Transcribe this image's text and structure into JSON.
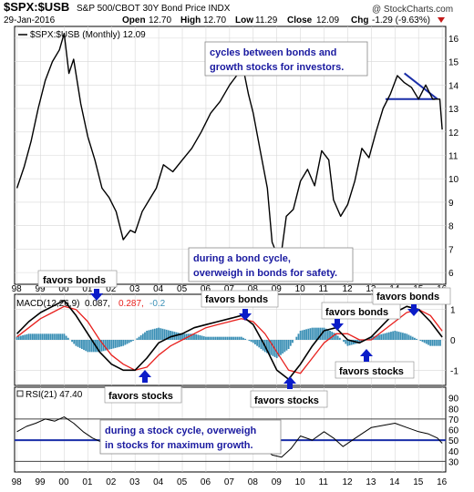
{
  "header": {
    "symbol": "$SPX:$USB",
    "description": "S&P 500/CBOT 30Y Bond Price  INDX",
    "date": "29-Jan-2016",
    "open_label": "Open",
    "open": "12.70",
    "high_label": "High",
    "high": "12.70",
    "low_label": "Low",
    "low": "11.29",
    "close_label": "Close",
    "close": "12.09",
    "chg_label": "Chg",
    "chg": "-1.29 (-9.63%)",
    "watermark": "@ StockCharts.com"
  },
  "colors": {
    "price": "#000000",
    "macd": "#000000",
    "signal": "#e8201d",
    "hist": "#3a8fb5",
    "annotation_text": "#1a1aa0",
    "arrow": "#0b1cc8",
    "trendline": "#1a2ea8",
    "rsi_line": "#000000"
  },
  "chart_data": [
    {
      "type": "line",
      "panel": "price",
      "legend": "$SPX:$USB (Monthly) 12.09",
      "ylim": [
        5.5,
        16.5
      ],
      "y_ticks": [
        "6",
        "7",
        "8",
        "9",
        "10",
        "11",
        "12",
        "13",
        "14",
        "15",
        "16"
      ],
      "x": [
        1998.0,
        1998.3,
        1998.6,
        1998.9,
        1999.2,
        1999.5,
        1999.8,
        2000.0,
        2000.2,
        2000.4,
        2000.7,
        2001.0,
        2001.3,
        2001.6,
        2001.9,
        2002.2,
        2002.5,
        2002.8,
        2003.0,
        2003.3,
        2003.6,
        2003.9,
        2004.2,
        2004.6,
        2005.0,
        2005.4,
        2005.8,
        2006.2,
        2006.6,
        2007.0,
        2007.3,
        2007.6,
        2007.8,
        2008.0,
        2008.3,
        2008.6,
        2008.8,
        2009.0,
        2009.2,
        2009.4,
        2009.7,
        2010.0,
        2010.3,
        2010.6,
        2010.9,
        2011.2,
        2011.4,
        2011.7,
        2012.0,
        2012.3,
        2012.6,
        2012.9,
        2013.2,
        2013.5,
        2013.8,
        2014.1,
        2014.4,
        2014.7,
        2015.0,
        2015.3,
        2015.6,
        2015.9,
        2016.0
      ],
      "y": [
        9.6,
        10.5,
        11.6,
        13.0,
        14.2,
        15.0,
        15.5,
        16.2,
        14.5,
        15.1,
        13.2,
        11.8,
        10.8,
        9.6,
        9.2,
        8.6,
        7.4,
        7.8,
        7.7,
        8.6,
        9.1,
        9.6,
        10.6,
        10.3,
        10.8,
        11.3,
        12.0,
        12.8,
        13.3,
        14.0,
        14.4,
        14.6,
        13.6,
        12.8,
        11.2,
        9.6,
        7.3,
        6.8,
        6.9,
        8.4,
        8.7,
        9.9,
        10.4,
        9.7,
        11.2,
        10.8,
        9.1,
        8.4,
        8.9,
        9.9,
        11.3,
        10.9,
        12.0,
        13.0,
        13.6,
        14.4,
        14.1,
        13.9,
        13.4,
        14.0,
        13.4,
        13.4,
        12.1
      ],
      "trendline_horizontal": {
        "y": 13.4,
        "x_range": [
          2013.6,
          2015.7
        ]
      },
      "trendline_descending": {
        "x": [
          2014.4,
          2015.8
        ],
        "y": [
          14.5,
          13.4
        ]
      }
    },
    {
      "type": "line",
      "panel": "macd",
      "legend_label": "MACD(12,26,9)",
      "legend_values": [
        "0.087,",
        "0.287,",
        "-0.2"
      ],
      "ylim": [
        -1.5,
        1.5
      ],
      "y_ticks": [
        "-1",
        "0",
        "1"
      ],
      "series": [
        {
          "name": "MACD",
          "x": [
            1998.0,
            1998.5,
            1999.0,
            1999.5,
            2000.0,
            2000.5,
            2001.0,
            2001.5,
            2002.0,
            2002.5,
            2003.0,
            2003.5,
            2004.0,
            2004.5,
            2005.0,
            2005.5,
            2006.0,
            2006.5,
            2007.0,
            2007.5,
            2008.0,
            2008.5,
            2009.0,
            2009.5,
            2010.0,
            2010.5,
            2011.0,
            2011.5,
            2012.0,
            2012.5,
            2013.0,
            2013.5,
            2014.0,
            2014.5,
            2015.0,
            2015.5,
            2016.0
          ],
          "y": [
            0.2,
            0.6,
            0.9,
            1.1,
            1.3,
            0.8,
            0.2,
            -0.4,
            -0.8,
            -1.0,
            -1.0,
            -0.6,
            -0.1,
            0.1,
            0.2,
            0.4,
            0.5,
            0.6,
            0.7,
            0.8,
            0.5,
            -0.2,
            -1.0,
            -1.3,
            -0.8,
            -0.2,
            0.3,
            0.4,
            0.0,
            -0.1,
            0.1,
            0.5,
            0.9,
            1.1,
            1.0,
            0.6,
            0.09
          ]
        },
        {
          "name": "Signal",
          "x": [
            1998.0,
            1998.5,
            1999.0,
            1999.5,
            2000.0,
            2000.5,
            2001.0,
            2001.5,
            2002.0,
            2002.5,
            2003.0,
            2003.5,
            2004.0,
            2004.5,
            2005.0,
            2005.5,
            2006.0,
            2006.5,
            2007.0,
            2007.5,
            2008.0,
            2008.5,
            2009.0,
            2009.5,
            2010.0,
            2010.5,
            2011.0,
            2011.5,
            2012.0,
            2012.5,
            2013.0,
            2013.5,
            2014.0,
            2014.5,
            2015.0,
            2015.5,
            2016.0
          ],
          "y": [
            0.1,
            0.4,
            0.7,
            0.9,
            1.1,
            1.0,
            0.6,
            0.0,
            -0.5,
            -0.8,
            -1.0,
            -0.9,
            -0.5,
            -0.2,
            0.0,
            0.2,
            0.4,
            0.5,
            0.6,
            0.7,
            0.6,
            0.2,
            -0.4,
            -1.0,
            -1.1,
            -0.6,
            -0.1,
            0.2,
            0.2,
            0.0,
            0.0,
            0.3,
            0.6,
            0.9,
            1.0,
            0.8,
            0.29
          ]
        }
      ],
      "histogram": {
        "x": [
          1998.0,
          1998.5,
          1999.0,
          1999.5,
          2000.0,
          2000.5,
          2001.0,
          2001.5,
          2002.0,
          2002.5,
          2003.0,
          2003.5,
          2004.0,
          2004.5,
          2005.0,
          2005.5,
          2006.0,
          2006.5,
          2007.0,
          2007.5,
          2008.0,
          2008.5,
          2009.0,
          2009.5,
          2010.0,
          2010.5,
          2011.0,
          2011.5,
          2012.0,
          2012.5,
          2013.0,
          2013.5,
          2014.0,
          2014.5,
          2015.0,
          2015.5,
          2016.0
        ],
        "y": [
          0.1,
          0.2,
          0.2,
          0.2,
          0.2,
          -0.2,
          -0.4,
          -0.4,
          -0.3,
          -0.2,
          0.0,
          0.3,
          0.4,
          0.3,
          0.2,
          0.2,
          0.1,
          0.1,
          0.1,
          0.1,
          -0.1,
          -0.4,
          -0.6,
          -0.3,
          0.3,
          0.4,
          0.4,
          0.2,
          -0.2,
          -0.1,
          0.1,
          0.2,
          0.3,
          0.2,
          0.0,
          -0.2,
          -0.2
        ]
      }
    },
    {
      "type": "line",
      "panel": "rsi",
      "legend": "RSI(21) 47.40",
      "ylim": [
        20,
        100
      ],
      "y_ticks": [
        "30",
        "40",
        "50",
        "60",
        "70",
        "80",
        "90"
      ],
      "reference_lines": [
        30,
        50,
        70
      ],
      "x": [
        1998.0,
        1998.4,
        1998.8,
        1999.2,
        1999.6,
        2000.0,
        2000.4,
        2000.8,
        2001.2,
        2001.6,
        2002.0,
        2002.4,
        2002.8,
        2003.2,
        2003.6,
        2004.0,
        2004.5,
        2005.0,
        2005.5,
        2006.0,
        2006.5,
        2007.0,
        2007.5,
        2008.0,
        2008.4,
        2008.8,
        2009.2,
        2009.6,
        2010.0,
        2010.5,
        2011.0,
        2011.4,
        2011.8,
        2012.2,
        2012.6,
        2013.0,
        2013.5,
        2014.0,
        2014.5,
        2015.0,
        2015.4,
        2015.8,
        2016.0
      ],
      "y": [
        58,
        63,
        66,
        70,
        68,
        72,
        66,
        58,
        52,
        48,
        44,
        40,
        38,
        42,
        50,
        56,
        53,
        55,
        57,
        58,
        56,
        60,
        58,
        52,
        44,
        36,
        34,
        42,
        54,
        50,
        58,
        52,
        44,
        50,
        56,
        62,
        64,
        66,
        62,
        58,
        56,
        52,
        47
      ],
      "x_ticks": [
        "98",
        "99",
        "00",
        "01",
        "02",
        "03",
        "04",
        "05",
        "06",
        "07",
        "08",
        "09",
        "10",
        "11",
        "12",
        "13",
        "14",
        "15",
        "16"
      ],
      "x_tick_years": [
        1998,
        1999,
        2000,
        2001,
        2002,
        2003,
        2004,
        2005,
        2006,
        2007,
        2008,
        2009,
        2010,
        2011,
        2012,
        2013,
        2014,
        2015,
        2016
      ]
    }
  ],
  "annotations": {
    "cycles": [
      "cycles between bonds and",
      "growth stocks for investors."
    ],
    "bond_cycle": [
      "during a bond cycle,",
      "overweigh in bonds for safety."
    ],
    "stock_cycle": [
      "during a stock cycle, overweigh",
      "in stocks for maximum growth."
    ],
    "favors_bonds_1": "favors bonds",
    "favors_bonds_2": "favors bonds",
    "favors_bonds_3": "favors bonds",
    "favors_bonds_4": "favors bonds",
    "favors_stocks_1": "favors stocks",
    "favors_stocks_2": "favors stocks",
    "favors_stocks_3": "favors stocks"
  }
}
